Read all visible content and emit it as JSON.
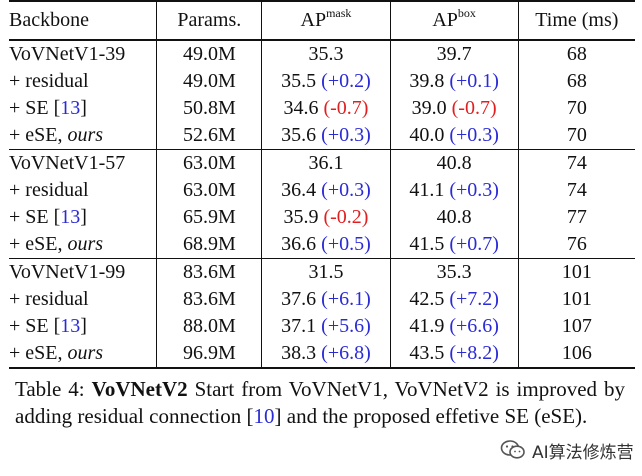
{
  "table": {
    "headers": {
      "backbone": "Backbone",
      "params": "Params.",
      "ap_mask_base": "AP",
      "ap_mask_sup": "mask",
      "ap_box_base": "AP",
      "ap_box_sup": "box",
      "time": "Time (ms)"
    },
    "groups": [
      {
        "rows": [
          {
            "name": "VoVNetV1-39",
            "params": "49.0M",
            "mask": "35.3",
            "box": "39.7",
            "time": "68"
          },
          {
            "name": "+ residual",
            "params": "49.0M",
            "mask": "35.5",
            "mask_delta": "(+0.2)",
            "box": "39.8",
            "box_delta": "(+0.1)",
            "time": "68"
          },
          {
            "name_prefix": "+ SE [",
            "ref": "13",
            "name_suffix": "]",
            "params": "50.8M",
            "mask": "34.6",
            "mask_delta": "(-0.7)",
            "box": "39.0",
            "box_delta": "(-0.7)",
            "time": "70"
          },
          {
            "name_prefix": "+ eSE, ",
            "name_italic": "ours",
            "params": "52.6M",
            "mask": "35.6",
            "mask_delta": "(+0.3)",
            "box": "40.0",
            "box_delta": "(+0.3)",
            "time": "70"
          }
        ]
      },
      {
        "rows": [
          {
            "name": "VoVNetV1-57",
            "params": "63.0M",
            "mask": "36.1",
            "box": "40.8",
            "time": "74"
          },
          {
            "name": "+ residual",
            "params": "63.0M",
            "mask": "36.4",
            "mask_delta": "(+0.3)",
            "box": "41.1",
            "box_delta": "(+0.3)",
            "time": "74"
          },
          {
            "name_prefix": "+ SE [",
            "ref": "13",
            "name_suffix": "]",
            "params": "65.9M",
            "mask": "35.9",
            "mask_delta": "(-0.2)",
            "box": "40.8",
            "time": "77"
          },
          {
            "name_prefix": "+ eSE, ",
            "name_italic": "ours",
            "params": "68.9M",
            "mask": "36.6",
            "mask_delta": "(+0.5)",
            "box": "41.5",
            "box_delta": "(+0.7)",
            "time": "76"
          }
        ]
      },
      {
        "rows": [
          {
            "name": "VoVNetV1-99",
            "params": "83.6M",
            "mask": "31.5",
            "box": "35.3",
            "time": "101"
          },
          {
            "name": "+ residual",
            "params": "83.6M",
            "mask": "37.6",
            "mask_delta": "(+6.1)",
            "box": "42.5",
            "box_delta": "(+7.2)",
            "time": "101"
          },
          {
            "name_prefix": "+ SE [",
            "ref": "13",
            "name_suffix": "]",
            "params": "88.0M",
            "mask": "37.1",
            "mask_delta": "(+5.6)",
            "box": "41.9",
            "box_delta": "(+6.6)",
            "time": "107"
          },
          {
            "name_prefix": "+ eSE, ",
            "name_italic": "ours",
            "params": "96.9M",
            "mask": "38.3",
            "mask_delta": "(+6.8)",
            "box": "43.5",
            "box_delta": "(+8.2)",
            "time": "106"
          }
        ]
      }
    ]
  },
  "caption": {
    "label": "Table 4:",
    "bold_title": "VoVNetV2",
    "text_before_ref": " Start from VoVNetV1, VoVNetV2 is improved by adding residual connection [",
    "ref": "10",
    "text_after_ref": "] and the proposed effetive SE (eSE)."
  },
  "watermark": {
    "text": "AI算法修炼营",
    "icon": "wechat-icon"
  },
  "colors": {
    "positive_delta": "#2b2bd6",
    "negative_delta": "#e02020",
    "reference_link": "#2b2bd6"
  }
}
